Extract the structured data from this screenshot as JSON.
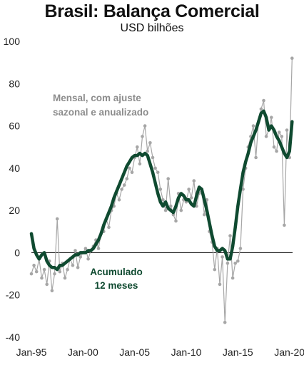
{
  "chart_data": {
    "type": "line",
    "title": "Brasil: Balança Comercial",
    "subtitle": "USD bilhões",
    "xlabel": "",
    "ylabel": "",
    "xlim": [
      1995.0,
      2020.3
    ],
    "ylim": [
      -40,
      100
    ],
    "yticks": [
      "-40",
      "-20",
      "0",
      "20",
      "40",
      "60",
      "80",
      "100"
    ],
    "xticks": [
      {
        "label": "Jan-95",
        "year": 1995
      },
      {
        "label": "Jan-00",
        "year": 2000
      },
      {
        "label": "Jan-05",
        "year": 2005
      },
      {
        "label": "Jan-10",
        "year": 2010
      },
      {
        "label": "Jan-15",
        "year": 2015
      },
      {
        "label": "Jan-20",
        "year": 2020
      }
    ],
    "grid": false,
    "zero_line": true,
    "annotations": {
      "monthly_line1": "Mensal, com ajuste",
      "monthly_line2": "sazonal e anualizado",
      "cumulative_line1": "Acumulado",
      "cumulative_line2": "12 meses"
    },
    "colors": {
      "monthly": "#a6a6a6",
      "cumulative": "#0f4a30",
      "axis": "#000000"
    },
    "series": [
      {
        "key": "monthly",
        "x": [
          1995.0,
          1995.25,
          1995.5,
          1995.75,
          1996.0,
          1996.25,
          1996.5,
          1996.75,
          1997.0,
          1997.25,
          1997.5,
          1997.75,
          1998.0,
          1998.25,
          1998.5,
          1998.75,
          1999.0,
          1999.25,
          1999.5,
          1999.75,
          2000.0,
          2000.25,
          2000.5,
          2000.75,
          2001.0,
          2001.25,
          2001.5,
          2001.75,
          2002.0,
          2002.25,
          2002.5,
          2002.75,
          2003.0,
          2003.25,
          2003.5,
          2003.75,
          2004.0,
          2004.25,
          2004.5,
          2004.75,
          2005.0,
          2005.25,
          2005.5,
          2005.75,
          2006.0,
          2006.25,
          2006.5,
          2006.75,
          2007.0,
          2007.25,
          2007.5,
          2007.75,
          2008.0,
          2008.25,
          2008.5,
          2008.75,
          2009.0,
          2009.25,
          2009.5,
          2009.75,
          2010.0,
          2010.25,
          2010.5,
          2010.75,
          2011.0,
          2011.25,
          2011.5,
          2011.75,
          2012.0,
          2012.25,
          2012.5,
          2012.75,
          2013.0,
          2013.25,
          2013.5,
          2013.75,
          2014.0,
          2014.25,
          2014.5,
          2014.75,
          2015.0,
          2015.25,
          2015.5,
          2015.75,
          2016.0,
          2016.25,
          2016.5,
          2016.75,
          2017.0,
          2017.25,
          2017.5,
          2017.75,
          2018.0,
          2018.25,
          2018.5,
          2018.75,
          2019.0,
          2019.25,
          2019.5,
          2019.75,
          2020.0,
          2020.25
        ],
        "y": [
          -10,
          -6,
          -9,
          -3,
          -12,
          -8,
          -15,
          -4,
          -18,
          -10,
          16,
          -9,
          -5,
          -12,
          -8,
          -3,
          -6,
          1,
          -7,
          -2,
          0,
          2,
          -3,
          1,
          3,
          6,
          2,
          9,
          10,
          16,
          12,
          20,
          22,
          28,
          25,
          30,
          32,
          35,
          40,
          38,
          45,
          50,
          42,
          55,
          60,
          48,
          52,
          45,
          40,
          38,
          30,
          25,
          20,
          35,
          22,
          18,
          15,
          28,
          20,
          25,
          24,
          30,
          26,
          34,
          22,
          28,
          30,
          18,
          25,
          10,
          5,
          -8,
          2,
          -15,
          -2,
          -33,
          -5,
          8,
          -12,
          -5,
          -4,
          2,
          30,
          40,
          50,
          55,
          60,
          45,
          62,
          68,
          72,
          55,
          58,
          64,
          50,
          48,
          57,
          55,
          13,
          58,
          45,
          92
        ],
        "values_note": ""
      },
      {
        "key": "cumulative",
        "x": [
          1995.0,
          1995.25,
          1995.5,
          1995.75,
          1996.0,
          1996.25,
          1996.5,
          1996.75,
          1997.0,
          1997.25,
          1997.5,
          1997.75,
          1998.0,
          1998.25,
          1998.5,
          1998.75,
          1999.0,
          1999.25,
          1999.5,
          1999.75,
          2000.0,
          2000.25,
          2000.5,
          2000.75,
          2001.0,
          2001.25,
          2001.5,
          2001.75,
          2002.0,
          2002.25,
          2002.5,
          2002.75,
          2003.0,
          2003.25,
          2003.5,
          2003.75,
          2004.0,
          2004.25,
          2004.5,
          2004.75,
          2005.0,
          2005.25,
          2005.5,
          2005.75,
          2006.0,
          2006.25,
          2006.5,
          2006.75,
          2007.0,
          2007.25,
          2007.5,
          2007.75,
          2008.0,
          2008.25,
          2008.5,
          2008.75,
          2009.0,
          2009.25,
          2009.5,
          2009.75,
          2010.0,
          2010.25,
          2010.5,
          2010.75,
          2011.0,
          2011.25,
          2011.5,
          2011.75,
          2012.0,
          2012.25,
          2012.5,
          2012.75,
          2013.0,
          2013.25,
          2013.5,
          2013.75,
          2014.0,
          2014.25,
          2014.5,
          2014.75,
          2015.0,
          2015.25,
          2015.5,
          2015.75,
          2016.0,
          2016.25,
          2016.5,
          2016.75,
          2017.0,
          2017.25,
          2017.5,
          2017.75,
          2018.0,
          2018.25,
          2018.5,
          2018.75,
          2019.0,
          2019.25,
          2019.5,
          2019.75,
          2020.0,
          2020.25
        ],
        "y": [
          9,
          2,
          -1,
          -3,
          -1,
          0,
          -4,
          -6,
          -7,
          -7,
          -8,
          -6,
          -6,
          -5,
          -4,
          -3,
          -2,
          -1,
          -1,
          0,
          0,
          0,
          1,
          1,
          2,
          4,
          6,
          9,
          13,
          16,
          19,
          22,
          26,
          29,
          32,
          35,
          38,
          41,
          43,
          45,
          46,
          46,
          47,
          46,
          47,
          46,
          42,
          38,
          33,
          28,
          24,
          22,
          24,
          21,
          20,
          19,
          22,
          26,
          28,
          27,
          25,
          25,
          23,
          22,
          27,
          31,
          30,
          25,
          20,
          14,
          8,
          3,
          1,
          1,
          2,
          1,
          -3,
          -3,
          3,
          12,
          22,
          30,
          38,
          43,
          47,
          52,
          55,
          58,
          62,
          66,
          67,
          64,
          58,
          60,
          58,
          55,
          53,
          50,
          47,
          45,
          48,
          62
        ]
      }
    ]
  }
}
